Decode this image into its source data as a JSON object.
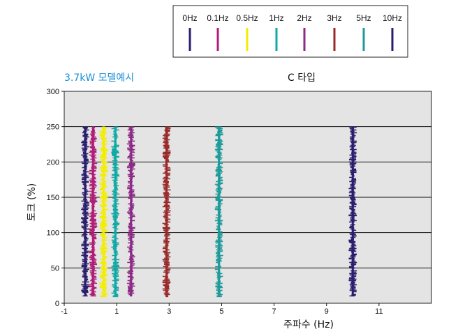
{
  "chart_data": {
    "type": "scatter",
    "title": "C 타입",
    "subtitle": "3.7kW 모델예시",
    "subtitle_color": "#1a8fd6",
    "xlabel": "주파수 (Hz)",
    "ylabel": "토크 (%)",
    "xlim": [
      -1,
      13
    ],
    "ylim": [
      0,
      300
    ],
    "x_ticks": [
      -1,
      1,
      3,
      5,
      7,
      9,
      11
    ],
    "y_ticks": [
      0,
      50,
      100,
      150,
      200,
      250,
      300
    ],
    "grid": "horizontal",
    "background_color": "#e4e4e4",
    "legend_position": "top-right",
    "series": [
      {
        "name": "0Hz",
        "color": "#2a1e6e",
        "x": -0.2,
        "y_range": [
          10,
          250
        ]
      },
      {
        "name": "0.1Hz",
        "color": "#b01e78",
        "x": 0.1,
        "y_range": [
          10,
          250
        ]
      },
      {
        "name": "0.5Hz",
        "color": "#f2ee00",
        "x": 0.5,
        "y_range": [
          10,
          250
        ]
      },
      {
        "name": "1Hz",
        "color": "#10a9a4",
        "x": 0.95,
        "y_range": [
          10,
          250
        ]
      },
      {
        "name": "2Hz",
        "color": "#8d2a87",
        "x": 1.55,
        "y_range": [
          10,
          250
        ]
      },
      {
        "name": "3Hz",
        "color": "#9a2a2a",
        "x": 2.9,
        "y_range": [
          10,
          250
        ]
      },
      {
        "name": "5Hz",
        "color": "#1e9a9a",
        "x": 4.9,
        "y_range": [
          10,
          250
        ]
      },
      {
        "name": "10Hz",
        "color": "#2a1e6e",
        "x": 10,
        "y_range": [
          10,
          250
        ]
      }
    ]
  }
}
